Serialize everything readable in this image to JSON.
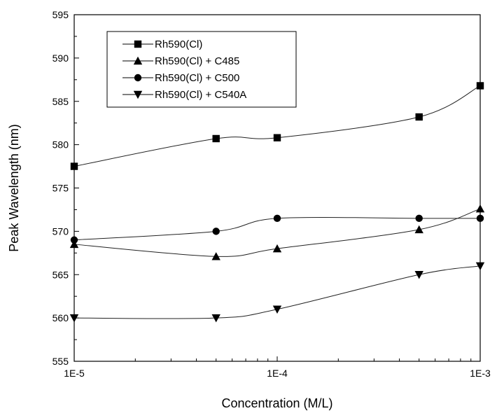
{
  "chart_data": {
    "type": "line",
    "title": "",
    "xlabel": "Concentration (M/L)",
    "ylabel": "Peak Wavelength (nm)",
    "x_scale": "log",
    "xlim": [
      1e-05,
      0.001
    ],
    "ylim": [
      555,
      595
    ],
    "x_ticks": [
      1e-05,
      0.0001,
      0.001
    ],
    "x_tick_labels": [
      "1E-5",
      "1E-4",
      "1E-3"
    ],
    "y_ticks": [
      555,
      560,
      565,
      570,
      575,
      580,
      585,
      590,
      595
    ],
    "y_tick_labels": [
      "555",
      "560",
      "565",
      "570",
      "575",
      "580",
      "585",
      "590",
      "595"
    ],
    "grid": false,
    "legend_position": "top-left",
    "x": [
      1e-05,
      5e-05,
      0.0001,
      0.0005,
      0.001
    ],
    "series": [
      {
        "name": "Rh590(Cl)",
        "marker": "square",
        "values": [
          577.5,
          580.7,
          580.8,
          583.2,
          586.8
        ]
      },
      {
        "name": "Rh590(Cl) + C485",
        "marker": "triangle-up",
        "values": [
          568.5,
          567.1,
          568.0,
          570.2,
          572.6
        ]
      },
      {
        "name": "Rh590(Cl) + C500",
        "marker": "circle",
        "values": [
          569.0,
          570.0,
          571.5,
          571.5,
          571.5
        ]
      },
      {
        "name": "Rh590(Cl) + C540A",
        "marker": "triangle-down",
        "values": [
          560.0,
          560.0,
          561.0,
          565.0,
          566.0
        ]
      }
    ]
  }
}
